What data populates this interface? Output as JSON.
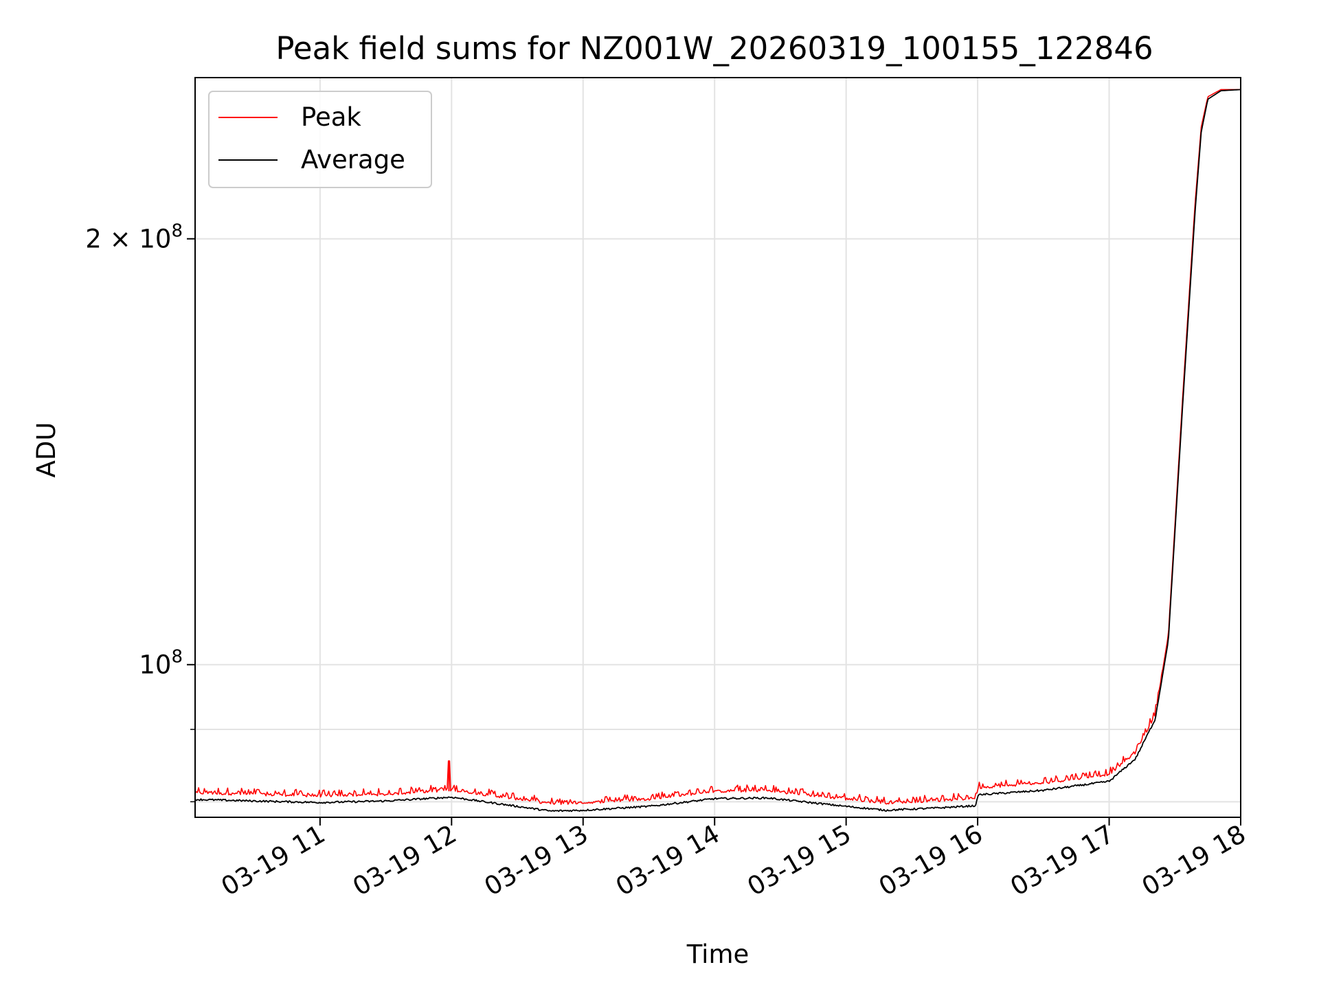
{
  "chart_data": {
    "type": "line",
    "title": "Peak field sums for NZ001W_20260319_100155_122846",
    "xlabel": "Time",
    "ylabel": "ADU",
    "yscale": "log",
    "ylim": [
      78000000,
      260000000
    ],
    "xlim": [
      10.05,
      18.0
    ],
    "grid": true,
    "legend_position": "top-left",
    "x_ticks": [
      {
        "value": 11,
        "label": "03-19 11"
      },
      {
        "value": 12,
        "label": "03-19 12"
      },
      {
        "value": 13,
        "label": "03-19 13"
      },
      {
        "value": 14,
        "label": "03-19 14"
      },
      {
        "value": 15,
        "label": "03-19 15"
      },
      {
        "value": 16,
        "label": "03-19 16"
      },
      {
        "value": 17,
        "label": "03-19 17"
      },
      {
        "value": 18,
        "label": "03-19 18"
      }
    ],
    "y_ticks": [
      {
        "value": 100000000,
        "base": "10",
        "exp": "8",
        "mult": ""
      },
      {
        "value": 200000000,
        "base": "10",
        "exp": "8",
        "mult": "2 × "
      }
    ],
    "y_minor_ticks": [
      80000000,
      90000000
    ],
    "x_hours": [
      10.05,
      10.5,
      11.0,
      11.5,
      12.0,
      12.5,
      12.75,
      13.0,
      13.5,
      14.0,
      14.4,
      15.0,
      15.3,
      15.7,
      15.99,
      16.0,
      16.5,
      17.0,
      17.2,
      17.35,
      17.45,
      17.55,
      17.65,
      17.7,
      17.75,
      17.85,
      18.0
    ],
    "series": [
      {
        "name": "Peak",
        "color": "#ff0000",
        "role": "peak",
        "values": [
          81000000,
          80800000,
          80600000,
          80800000,
          81400000,
          80200000,
          79600000,
          79700000,
          80200000,
          81200000,
          81300000,
          80200000,
          79700000,
          80000000,
          80300000,
          81700000,
          82300000,
          83500000,
          86500000,
          92000000,
          105000000,
          150000000,
          210000000,
          240000000,
          252000000,
          255000000,
          255000000
        ]
      },
      {
        "name": "Average",
        "color": "#000000",
        "role": "average",
        "values": [
          80300000,
          80100000,
          79900000,
          80100000,
          80600000,
          79400000,
          78800000,
          78900000,
          79400000,
          80400000,
          80500000,
          79400000,
          78900000,
          79200000,
          79500000,
          80900000,
          81500000,
          82700000,
          85800000,
          91500000,
          104000000,
          148000000,
          207000000,
          238000000,
          251000000,
          254500000,
          255000000
        ]
      }
    ],
    "peak_spike": {
      "hour": 11.98,
      "value": 85500000
    }
  }
}
